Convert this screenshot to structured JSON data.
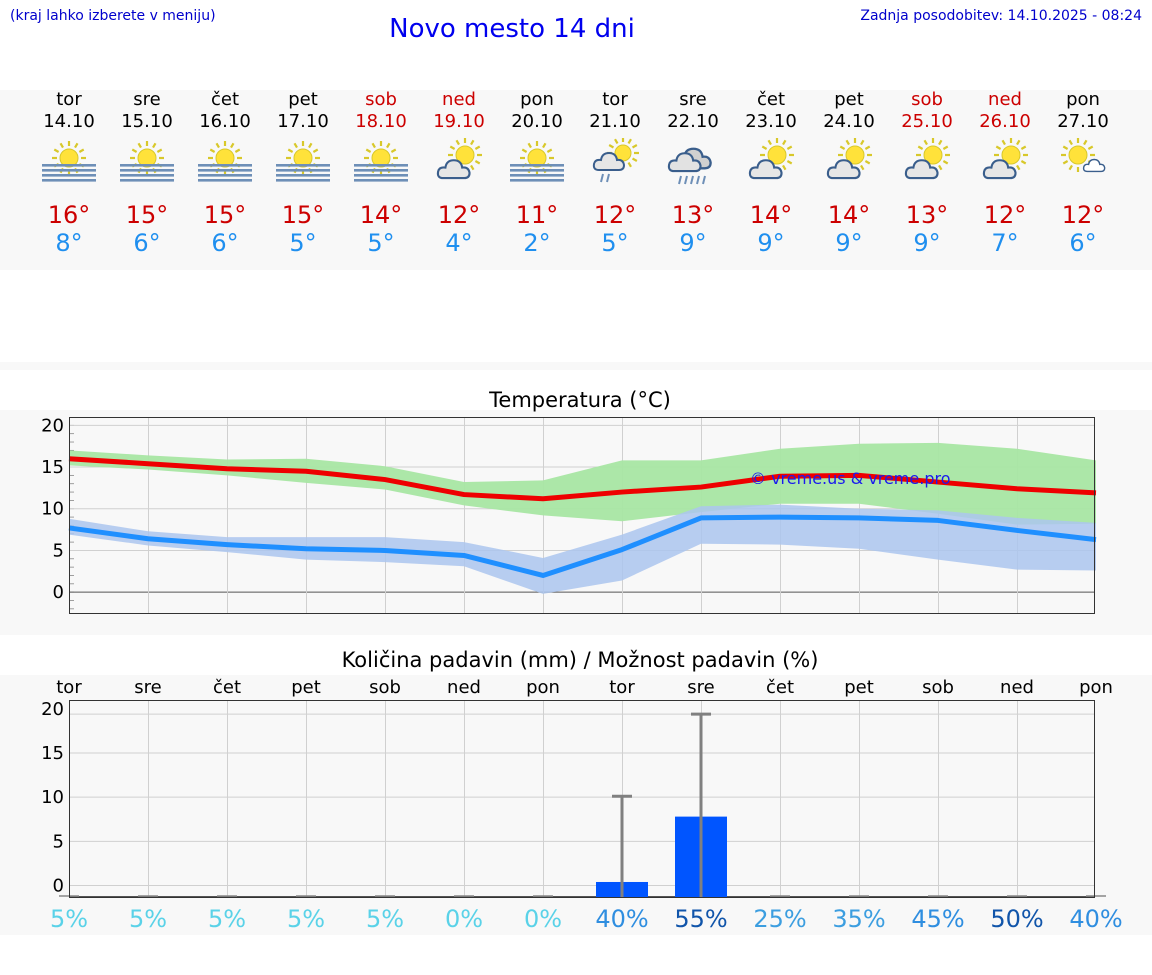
{
  "header": {
    "note": "(kraj lahko izberete v meniju)",
    "title": "Novo mesto 14 dni",
    "updated": "Zadnja posodobitev: 14.10.2025 - 08:24"
  },
  "days": [
    {
      "name": "tor",
      "date": "14.10",
      "weekend": false,
      "icon": "fog-sun-icon",
      "tmax": "16°",
      "tmin": "8°"
    },
    {
      "name": "sre",
      "date": "15.10",
      "weekend": false,
      "icon": "fog-sun-icon",
      "tmax": "15°",
      "tmin": "6°"
    },
    {
      "name": "čet",
      "date": "16.10",
      "weekend": false,
      "icon": "fog-sun-icon",
      "tmax": "15°",
      "tmin": "6°"
    },
    {
      "name": "pet",
      "date": "17.10",
      "weekend": false,
      "icon": "fog-sun-icon",
      "tmax": "15°",
      "tmin": "5°"
    },
    {
      "name": "sob",
      "date": "18.10",
      "weekend": true,
      "icon": "fog-sun-icon",
      "tmax": "14°",
      "tmin": "5°"
    },
    {
      "name": "ned",
      "date": "19.10",
      "weekend": true,
      "icon": "partly-cloudy-icon",
      "tmax": "12°",
      "tmin": "4°"
    },
    {
      "name": "pon",
      "date": "20.10",
      "weekend": false,
      "icon": "fog-sun-icon",
      "tmax": "11°",
      "tmin": "2°"
    },
    {
      "name": "tor",
      "date": "21.10",
      "weekend": false,
      "icon": "sun-cloud-rain-icon",
      "tmax": "12°",
      "tmin": "5°"
    },
    {
      "name": "sre",
      "date": "22.10",
      "weekend": false,
      "icon": "rain-cloud-icon",
      "tmax": "13°",
      "tmin": "9°"
    },
    {
      "name": "čet",
      "date": "23.10",
      "weekend": false,
      "icon": "partly-cloudy-icon",
      "tmax": "14°",
      "tmin": "9°"
    },
    {
      "name": "pet",
      "date": "24.10",
      "weekend": false,
      "icon": "partly-cloudy-icon",
      "tmax": "14°",
      "tmin": "9°"
    },
    {
      "name": "sob",
      "date": "25.10",
      "weekend": true,
      "icon": "partly-cloudy-icon",
      "tmax": "13°",
      "tmin": "9°"
    },
    {
      "name": "ned",
      "date": "26.10",
      "weekend": true,
      "icon": "partly-cloudy-icon",
      "tmax": "12°",
      "tmin": "7°"
    },
    {
      "name": "pon",
      "date": "27.10",
      "weekend": false,
      "icon": "sun-small-cloud-icon",
      "tmax": "12°",
      "tmin": "6°"
    }
  ],
  "colors": {
    "max_line": "#ee0000",
    "max_band": "#a8e6a3",
    "min_line": "#1f8fff",
    "min_band": "#abc6ee",
    "precip_bar": "#0055ff",
    "weekend_text": "#cc0000",
    "title_blue": "#0000ee"
  },
  "chart_data": [
    {
      "type": "line",
      "title": "Temperatura (°C)",
      "watermark": "© vreme.us & vreme.pro",
      "x": [
        0,
        1,
        2,
        3,
        4,
        5,
        6,
        7,
        8,
        9,
        10,
        11,
        12,
        13
      ],
      "ylim": [
        -2.5,
        21
      ],
      "yticks": [
        0,
        5,
        10,
        15,
        20
      ],
      "grid": true,
      "series": [
        {
          "values": [
            16.0,
            15.4,
            14.8,
            14.5,
            13.5,
            11.7,
            11.2,
            12.0,
            12.6,
            13.9,
            14.0,
            13.2,
            12.4,
            11.9
          ]
        },
        {
          "values": [
            7.7,
            6.4,
            5.7,
            5.2,
            5.0,
            4.4,
            2.0,
            5.1,
            8.9,
            9.0,
            8.9,
            8.6,
            7.4,
            6.3
          ]
        }
      ],
      "bands": [
        {
          "upper": [
            17.0,
            16.4,
            15.9,
            16.0,
            15.1,
            13.2,
            13.4,
            15.8,
            15.8,
            17.2,
            17.8,
            17.9,
            17.2,
            15.8
          ],
          "lower": [
            15.2,
            14.7,
            14.0,
            13.1,
            12.3,
            10.4,
            9.2,
            8.5,
            9.6,
            10.6,
            10.6,
            9.4,
            8.1,
            8.2
          ]
        },
        {
          "upper": [
            8.8,
            7.3,
            6.6,
            6.6,
            6.6,
            6.0,
            4.1,
            6.9,
            10.3,
            10.5,
            10.0,
            9.8,
            8.9,
            8.3
          ],
          "lower": [
            6.9,
            5.6,
            4.8,
            3.9,
            3.6,
            3.1,
            -0.2,
            1.4,
            5.8,
            5.7,
            5.2,
            3.9,
            2.7,
            2.6
          ]
        }
      ]
    },
    {
      "type": "bar",
      "title": "Količina padavin (mm) / Možnost padavin (%)",
      "categories": [
        "tor",
        "sre",
        "čet",
        "pet",
        "sob",
        "ned",
        "pon",
        "tor",
        "sre",
        "čet",
        "pet",
        "sob",
        "ned",
        "pon"
      ],
      "values": [
        0,
        0,
        0,
        0,
        0,
        0,
        0,
        0.4,
        7.8,
        0,
        0,
        0,
        0,
        0
      ],
      "error_upper": [
        0,
        0,
        0,
        0,
        0,
        0,
        0,
        10.1,
        19.4,
        0,
        0,
        0,
        0,
        0
      ],
      "probability": [
        "5%",
        "5%",
        "5%",
        "5%",
        "5%",
        "0%",
        "0%",
        "40%",
        "55%",
        "25%",
        "35%",
        "45%",
        "50%",
        "40%"
      ],
      "probability_colors": [
        "#5ad2e8",
        "#5ad2e8",
        "#5ad2e8",
        "#5ad2e8",
        "#5ad2e8",
        "#5ad2e8",
        "#5ad2e8",
        "#2f8ee0",
        "#1155aa",
        "#3c9ee0",
        "#3c9ee0",
        "#2f8ee0",
        "#1155aa",
        "#2f8ee0"
      ],
      "ylim": [
        -1.3,
        21
      ],
      "yticks": [
        0,
        5,
        10,
        15,
        20
      ],
      "grid": true
    }
  ]
}
